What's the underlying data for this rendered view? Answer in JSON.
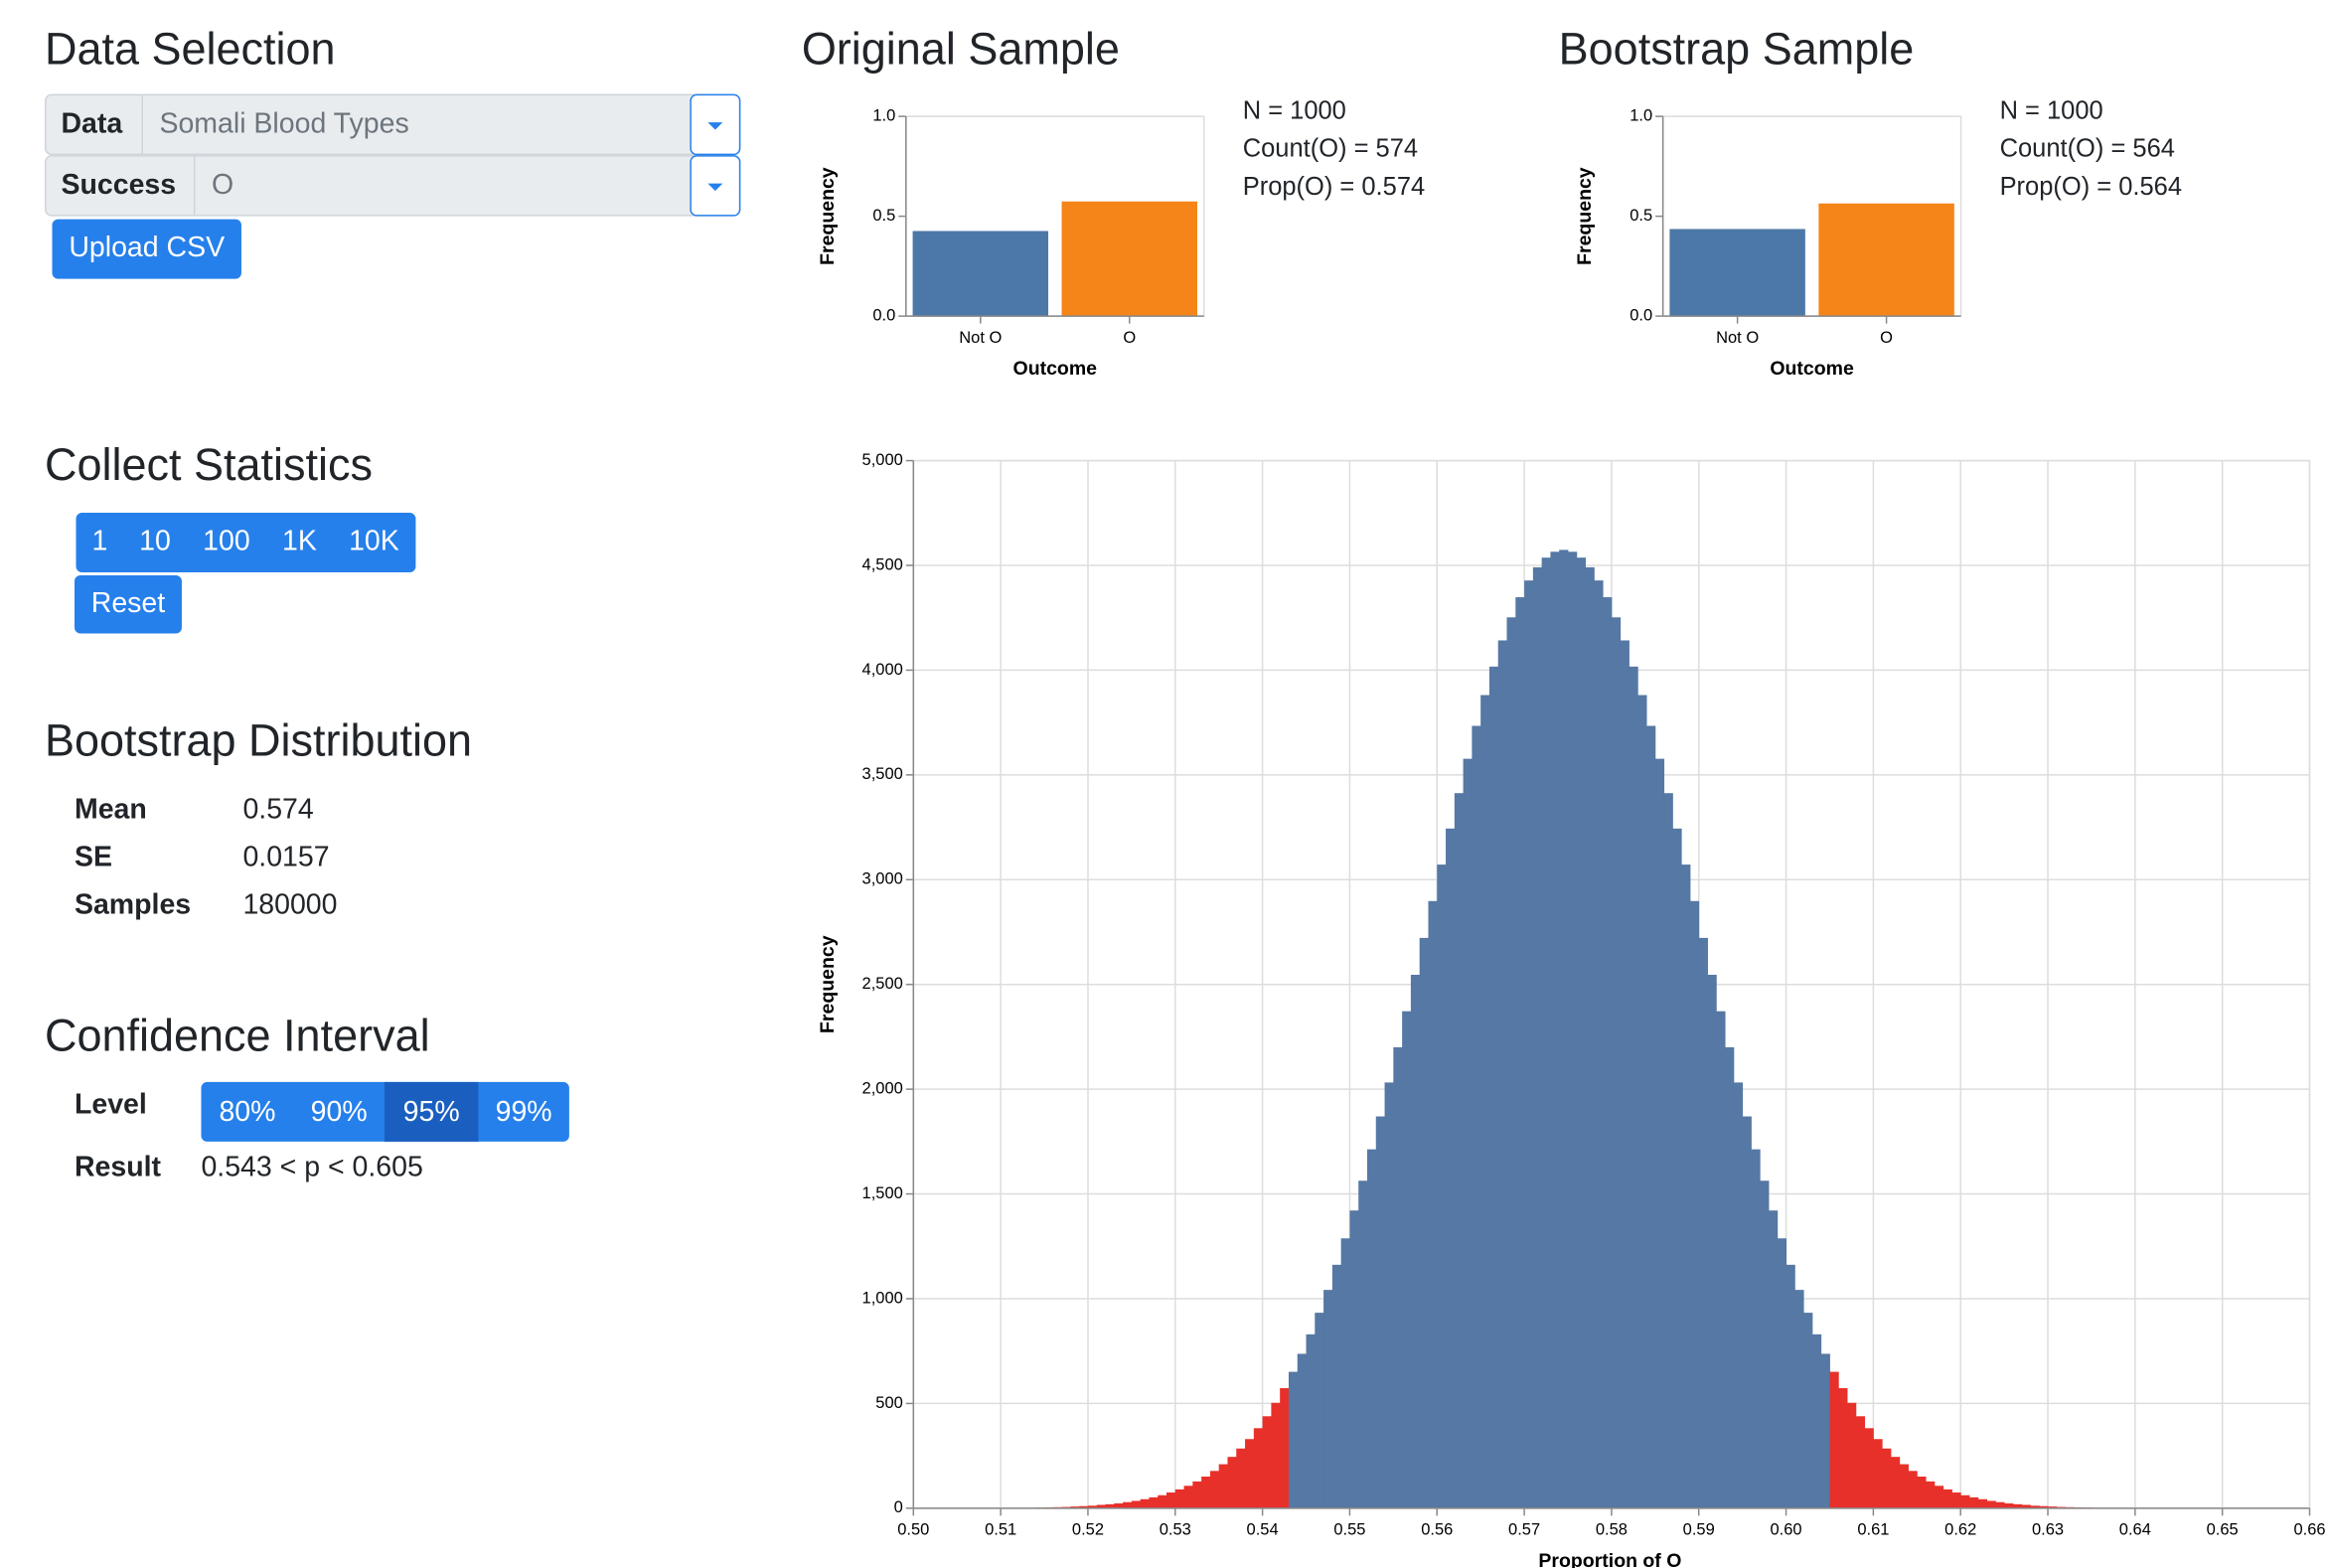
{
  "data_selection": {
    "title": "Data Selection",
    "data_label": "Data",
    "data_value": "Somali Blood Types",
    "success_label": "Success",
    "success_value": "O",
    "upload": "Upload CSV"
  },
  "collect_statistics": {
    "title": "Collect Statistics",
    "buttons": [
      "1",
      "10",
      "100",
      "1K",
      "10K"
    ],
    "reset": "Reset"
  },
  "bootstrap_distribution": {
    "title": "Bootstrap Distribution",
    "rows": [
      [
        "Mean",
        "0.574"
      ],
      [
        "SE",
        "0.0157"
      ],
      [
        "Samples",
        "180000"
      ]
    ]
  },
  "confidence_interval": {
    "title": "Confidence Interval",
    "level_label": "Level",
    "levels": [
      "80%",
      "90%",
      "95%",
      "99%"
    ],
    "selected": "95%",
    "result_label": "Result",
    "result": "0.543 < p < 0.605"
  },
  "chart_data": [
    {
      "type": "bar",
      "title": "Original Sample",
      "categories": [
        "Not O",
        "O"
      ],
      "values": [
        0.426,
        0.574
      ],
      "colors": [
        "#4c78a8",
        "#f58518"
      ],
      "ylim": [
        0,
        1
      ],
      "yticks": [
        {
          "value": 0,
          "label": "0.0"
        },
        {
          "value": 0.5,
          "label": "0.5"
        },
        {
          "value": 1,
          "label": "1.0"
        }
      ],
      "xlabel": "Outcome",
      "ylabel": "Frequency",
      "stats": [
        "N = 1000",
        "Count(O) = 574",
        "Prop(O) = 0.574"
      ]
    },
    {
      "type": "bar",
      "title": "Bootstrap Sample",
      "categories": [
        "Not O",
        "O"
      ],
      "values": [
        0.436,
        0.564
      ],
      "colors": [
        "#4c78a8",
        "#f58518"
      ],
      "ylim": [
        0,
        1
      ],
      "yticks": [
        {
          "value": 0,
          "label": "0.0"
        },
        {
          "value": 0.5,
          "label": "0.5"
        },
        {
          "value": 1,
          "label": "1.0"
        }
      ],
      "xlabel": "Outcome",
      "ylabel": "Frequency",
      "stats": [
        "N = 1000",
        "Count(O) = 564",
        "Prop(O) = 0.564"
      ]
    },
    {
      "type": "histogram",
      "xlabel": "Proportion of O",
      "ylabel": "Frequency",
      "color": "#5578a4",
      "highlight_color": "#e8302a",
      "highlight_outside": [
        0.543,
        0.605
      ],
      "grid": true,
      "bins": [
        0.5,
        0.501,
        0.502,
        0.503,
        0.504,
        0.505,
        0.506,
        0.507,
        0.508,
        0.509,
        0.51,
        0.511,
        0.512,
        0.513,
        0.514,
        0.515,
        0.516,
        0.517,
        0.518,
        0.519,
        0.52,
        0.521,
        0.522,
        0.523,
        0.524,
        0.525,
        0.526,
        0.527,
        0.528,
        0.529,
        0.53,
        0.531,
        0.532,
        0.533,
        0.534,
        0.535,
        0.536,
        0.537,
        0.538,
        0.539,
        0.54,
        0.541,
        0.542,
        0.543,
        0.544,
        0.545,
        0.546,
        0.547,
        0.548,
        0.549,
        0.55,
        0.551,
        0.552,
        0.553,
        0.554,
        0.555,
        0.556,
        0.557,
        0.558,
        0.559,
        0.56,
        0.561,
        0.562,
        0.563,
        0.564,
        0.565,
        0.566,
        0.567,
        0.568,
        0.569,
        0.57,
        0.571,
        0.572,
        0.573,
        0.574,
        0.575,
        0.576,
        0.577,
        0.578,
        0.579,
        0.58,
        0.581,
        0.582,
        0.583,
        0.584,
        0.585,
        0.586,
        0.587,
        0.588,
        0.589,
        0.59,
        0.591,
        0.592,
        0.593,
        0.594,
        0.595,
        0.596,
        0.597,
        0.598,
        0.599,
        0.6,
        0.601,
        0.602,
        0.603,
        0.604,
        0.605,
        0.606,
        0.607,
        0.608,
        0.609,
        0.61,
        0.611,
        0.612,
        0.613,
        0.614,
        0.615,
        0.616,
        0.617,
        0.618,
        0.619,
        0.62,
        0.621,
        0.622,
        0.623,
        0.624,
        0.625,
        0.626,
        0.627,
        0.628,
        0.629,
        0.63,
        0.631,
        0.632,
        0.633,
        0.634,
        0.635,
        0.636,
        0.637,
        0.638,
        0.639,
        0.64,
        0.641,
        0.642,
        0.643,
        0.644,
        0.645,
        0.646,
        0.647,
        0.648,
        0.649,
        0.65,
        0.651,
        0.652,
        0.653,
        0.654,
        0.655,
        0.656,
        0.657,
        0.658,
        0.659,
        0.66
      ],
      "values": [
        0,
        0,
        0,
        0,
        0,
        1,
        0,
        0,
        1,
        1,
        1,
        1,
        2,
        2,
        3,
        4,
        5,
        6,
        8,
        10,
        12,
        16,
        19,
        23,
        29,
        35,
        43,
        52,
        62,
        75,
        90,
        107,
        128,
        151,
        178,
        210,
        245,
        285,
        330,
        382,
        439,
        503,
        573,
        651,
        737,
        830,
        933,
        1042,
        1162,
        1288,
        1421,
        1563,
        1713,
        1870,
        2032,
        2200,
        2372,
        2546,
        2722,
        2898,
        3072,
        3244,
        3413,
        3577,
        3734,
        3881,
        4017,
        4142,
        4252,
        4348,
        4428,
        4491,
        4537,
        4565,
        4574,
        4565,
        4537,
        4491,
        4428,
        4348,
        4252,
        4142,
        4017,
        3881,
        3734,
        3577,
        3413,
        3244,
        3072,
        2898,
        2722,
        2546,
        2372,
        2200,
        2032,
        1870,
        1713,
        1563,
        1421,
        1288,
        1162,
        1042,
        933,
        830,
        737,
        651,
        573,
        503,
        439,
        382,
        330,
        285,
        245,
        210,
        178,
        151,
        128,
        107,
        90,
        75,
        62,
        52,
        43,
        35,
        29,
        23,
        19,
        16,
        12,
        10,
        8,
        6,
        5,
        4,
        3,
        2,
        2,
        1,
        1,
        1,
        1,
        0,
        0,
        1,
        0,
        0,
        0,
        0,
        0,
        0,
        0,
        0,
        0,
        0,
        0,
        0,
        0,
        0,
        0,
        0
      ],
      "xlim": [
        0.5,
        0.66
      ],
      "xticks": [
        {
          "value": 0.5,
          "label": "0.50"
        },
        0.51,
        0.52,
        0.53,
        0.54,
        0.55,
        0.56,
        0.57,
        0.58,
        0.59,
        {
          "value": 0.6,
          "label": "0.60"
        },
        0.61,
        0.62,
        0.63,
        0.64,
        0.65,
        0.66
      ],
      "ylim": [
        0,
        5000
      ],
      "yticks": [
        0,
        500,
        {
          "value": 1000,
          "label": "1,000"
        },
        {
          "value": 1500,
          "label": "1,500"
        },
        {
          "value": 2000,
          "label": "2,000"
        },
        {
          "value": 2500,
          "label": "2,500"
        },
        {
          "value": 3000,
          "label": "3,000"
        },
        {
          "value": 3500,
          "label": "3,500"
        },
        {
          "value": 4000,
          "label": "4,000"
        },
        {
          "value": 4500,
          "label": "4,500"
        },
        {
          "value": 5000,
          "label": "5,000"
        }
      ]
    }
  ]
}
